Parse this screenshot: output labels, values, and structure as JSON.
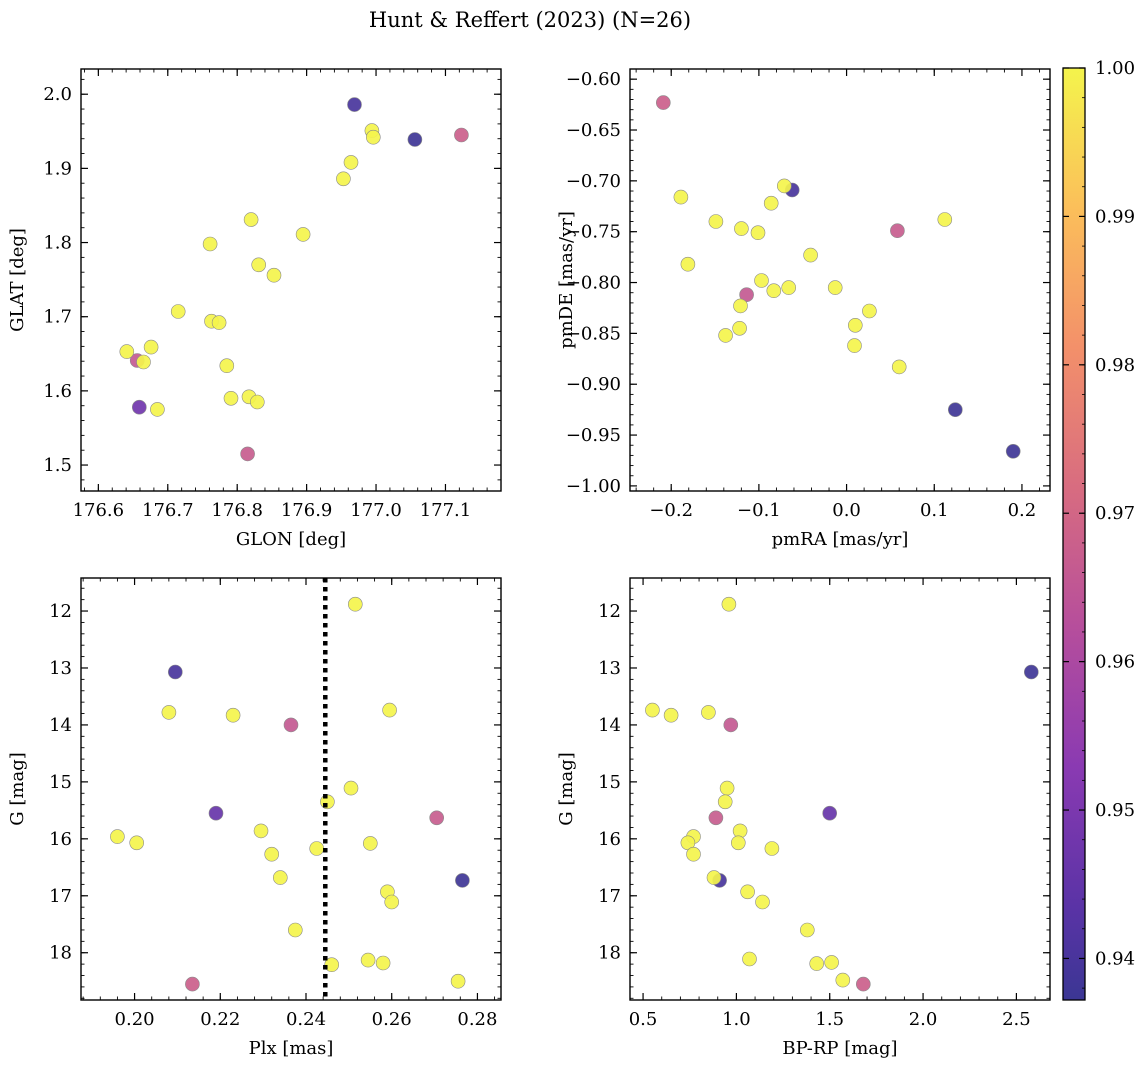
{
  "figure": {
    "title": "Hunt & Reffert (2023) (N=26)"
  },
  "colorbar": {
    "colormap": "plasma",
    "range": [
      0.9372,
      1.0
    ],
    "ticks": [
      0.94,
      0.95,
      0.96,
      0.97,
      0.98,
      0.99,
      1.0
    ],
    "tick_labels": [
      "0.94",
      "0.95",
      "0.96",
      "0.97",
      "0.98",
      "0.99",
      "1.00"
    ]
  },
  "chart_data": [
    {
      "type": "scatter",
      "id": "glon-glat",
      "xlabel": "GLON [deg]",
      "ylabel": "GLAT [deg]",
      "xlim": [
        176.575,
        177.18
      ],
      "ylim": [
        1.465,
        2.034
      ],
      "xticks": [
        176.6,
        176.7,
        176.8,
        176.9,
        177.0,
        177.1
      ],
      "xtick_labels": [
        "176.6",
        "176.7",
        "176.8",
        "176.9",
        "177.0",
        "177.1"
      ],
      "yticks": [
        1.5,
        1.6,
        1.7,
        1.8,
        1.9,
        2.0
      ],
      "ytick_labels": [
        "1.5",
        "1.6",
        "1.7",
        "1.8",
        "1.9",
        "2.0"
      ],
      "y_inverted": false,
      "points": [
        {
          "x": 176.969,
          "y": 1.986,
          "c": 0.94
        },
        {
          "x": 177.056,
          "y": 1.939,
          "c": 0.938
        },
        {
          "x": 176.659,
          "y": 1.578,
          "c": 0.948
        },
        {
          "x": 177.123,
          "y": 1.945,
          "c": 0.968
        },
        {
          "x": 176.656,
          "y": 1.641,
          "c": 0.966
        },
        {
          "x": 176.815,
          "y": 1.515,
          "c": 0.967
        },
        {
          "x": 176.994,
          "y": 1.951,
          "c": 1.0
        },
        {
          "x": 176.996,
          "y": 1.942,
          "c": 1.0
        },
        {
          "x": 176.964,
          "y": 1.908,
          "c": 1.0
        },
        {
          "x": 176.953,
          "y": 1.886,
          "c": 1.0
        },
        {
          "x": 176.82,
          "y": 1.831,
          "c": 1.0
        },
        {
          "x": 176.895,
          "y": 1.811,
          "c": 1.0
        },
        {
          "x": 176.761,
          "y": 1.798,
          "c": 1.0
        },
        {
          "x": 176.831,
          "y": 1.77,
          "c": 1.0
        },
        {
          "x": 176.853,
          "y": 1.756,
          "c": 1.0
        },
        {
          "x": 176.715,
          "y": 1.707,
          "c": 1.0
        },
        {
          "x": 176.763,
          "y": 1.694,
          "c": 1.0
        },
        {
          "x": 176.774,
          "y": 1.692,
          "c": 1.0
        },
        {
          "x": 176.641,
          "y": 1.653,
          "c": 1.0
        },
        {
          "x": 176.676,
          "y": 1.659,
          "c": 1.0
        },
        {
          "x": 176.665,
          "y": 1.639,
          "c": 1.0
        },
        {
          "x": 176.785,
          "y": 1.634,
          "c": 1.0
        },
        {
          "x": 176.685,
          "y": 1.575,
          "c": 1.0
        },
        {
          "x": 176.791,
          "y": 1.59,
          "c": 1.0
        },
        {
          "x": 176.817,
          "y": 1.592,
          "c": 1.0
        },
        {
          "x": 176.829,
          "y": 1.585,
          "c": 1.0
        }
      ]
    },
    {
      "type": "scatter",
      "id": "pmra-pmde",
      "xlabel": "pmRA [mas/yr]",
      "ylabel": "pmDE [mas/yr]",
      "xlim": [
        -0.247,
        0.232
      ],
      "ylim": [
        -1.005,
        -0.59
      ],
      "xticks": [
        -0.2,
        -0.1,
        0.0,
        0.1,
        0.2
      ],
      "xtick_labels": [
        "−0.2",
        "−0.1",
        "0.0",
        "0.1",
        "0.2"
      ],
      "yticks": [
        -1.0,
        -0.95,
        -0.9,
        -0.85,
        -0.8,
        -0.75,
        -0.7,
        -0.65,
        -0.6
      ],
      "ytick_labels": [
        "−1.00",
        "−0.95",
        "−0.90",
        "−0.85",
        "−0.80",
        "−0.75",
        "−0.70",
        "−0.65",
        "−0.60"
      ],
      "y_inverted": false,
      "points": [
        {
          "x": -0.062,
          "y": -0.709,
          "c": 0.94
        },
        {
          "x": 0.124,
          "y": -0.925,
          "c": 0.938
        },
        {
          "x": 0.19,
          "y": -0.966,
          "c": 0.938
        },
        {
          "x": -0.209,
          "y": -0.623,
          "c": 0.968
        },
        {
          "x": 0.058,
          "y": -0.749,
          "c": 0.967
        },
        {
          "x": -0.114,
          "y": -0.812,
          "c": 0.966
        },
        {
          "x": -0.071,
          "y": -0.705,
          "c": 1.0
        },
        {
          "x": -0.189,
          "y": -0.716,
          "c": 1.0
        },
        {
          "x": -0.086,
          "y": -0.722,
          "c": 1.0
        },
        {
          "x": -0.149,
          "y": -0.74,
          "c": 1.0
        },
        {
          "x": 0.112,
          "y": -0.738,
          "c": 1.0
        },
        {
          "x": -0.12,
          "y": -0.747,
          "c": 1.0
        },
        {
          "x": -0.101,
          "y": -0.751,
          "c": 1.0
        },
        {
          "x": -0.041,
          "y": -0.773,
          "c": 1.0
        },
        {
          "x": -0.181,
          "y": -0.782,
          "c": 1.0
        },
        {
          "x": -0.097,
          "y": -0.798,
          "c": 1.0
        },
        {
          "x": -0.083,
          "y": -0.808,
          "c": 1.0
        },
        {
          "x": -0.066,
          "y": -0.805,
          "c": 1.0
        },
        {
          "x": -0.013,
          "y": -0.805,
          "c": 1.0
        },
        {
          "x": -0.121,
          "y": -0.823,
          "c": 1.0
        },
        {
          "x": 0.026,
          "y": -0.828,
          "c": 1.0
        },
        {
          "x": -0.122,
          "y": -0.845,
          "c": 1.0
        },
        {
          "x": 0.01,
          "y": -0.842,
          "c": 1.0
        },
        {
          "x": -0.138,
          "y": -0.852,
          "c": 1.0
        },
        {
          "x": 0.009,
          "y": -0.862,
          "c": 1.0
        },
        {
          "x": 0.06,
          "y": -0.883,
          "c": 1.0
        }
      ]
    },
    {
      "type": "scatter",
      "id": "plx-g",
      "xlabel": "Plx [mas]",
      "ylabel": "G [mag]",
      "xlim": [
        0.1875,
        0.2855
      ],
      "ylim": [
        11.42,
        18.83
      ],
      "xticks": [
        0.2,
        0.22,
        0.24,
        0.26,
        0.28
      ],
      "xtick_labels": [
        "0.20",
        "0.22",
        "0.24",
        "0.26",
        "0.28"
      ],
      "yticks": [
        12,
        13,
        14,
        15,
        16,
        17,
        18
      ],
      "ytick_labels": [
        "12",
        "13",
        "14",
        "15",
        "16",
        "17",
        "18"
      ],
      "y_inverted": true,
      "vline": {
        "x": 0.2445,
        "style": "dotted"
      },
      "points": [
        {
          "x": 0.2095,
          "y": 13.07,
          "c": 0.94
        },
        {
          "x": 0.219,
          "y": 15.55,
          "c": 0.946
        },
        {
          "x": 0.2765,
          "y": 16.73,
          "c": 0.938
        },
        {
          "x": 0.2365,
          "y": 14.0,
          "c": 0.966
        },
        {
          "x": 0.2705,
          "y": 15.63,
          "c": 0.967
        },
        {
          "x": 0.2135,
          "y": 18.55,
          "c": 0.968
        },
        {
          "x": 0.2515,
          "y": 11.88,
          "c": 1.0
        },
        {
          "x": 0.2595,
          "y": 13.74,
          "c": 1.0
        },
        {
          "x": 0.208,
          "y": 13.78,
          "c": 1.0
        },
        {
          "x": 0.223,
          "y": 13.83,
          "c": 1.0
        },
        {
          "x": 0.2505,
          "y": 15.11,
          "c": 1.0
        },
        {
          "x": 0.245,
          "y": 15.35,
          "c": 1.0
        },
        {
          "x": 0.2295,
          "y": 15.86,
          "c": 1.0
        },
        {
          "x": 0.196,
          "y": 15.96,
          "c": 1.0
        },
        {
          "x": 0.2005,
          "y": 16.07,
          "c": 1.0
        },
        {
          "x": 0.255,
          "y": 16.08,
          "c": 1.0
        },
        {
          "x": 0.2425,
          "y": 16.17,
          "c": 1.0
        },
        {
          "x": 0.232,
          "y": 16.27,
          "c": 1.0
        },
        {
          "x": 0.234,
          "y": 16.68,
          "c": 1.0
        },
        {
          "x": 0.259,
          "y": 16.93,
          "c": 1.0
        },
        {
          "x": 0.26,
          "y": 17.11,
          "c": 1.0
        },
        {
          "x": 0.2375,
          "y": 17.6,
          "c": 1.0
        },
        {
          "x": 0.2545,
          "y": 18.13,
          "c": 1.0
        },
        {
          "x": 0.258,
          "y": 18.18,
          "c": 1.0
        },
        {
          "x": 0.246,
          "y": 18.21,
          "c": 1.0
        },
        {
          "x": 0.2755,
          "y": 18.5,
          "c": 1.0
        }
      ]
    },
    {
      "type": "scatter",
      "id": "bprp-g",
      "xlabel": "BP-RP [mag]",
      "ylabel": "G [mag]",
      "xlim": [
        0.43,
        2.68
      ],
      "ylim": [
        11.42,
        18.83
      ],
      "xticks": [
        0.5,
        1.0,
        1.5,
        2.0,
        2.5
      ],
      "xtick_labels": [
        "0.5",
        "1.0",
        "1.5",
        "2.0",
        "2.5"
      ],
      "yticks": [
        12,
        13,
        14,
        15,
        16,
        17,
        18
      ],
      "ytick_labels": [
        "12",
        "13",
        "14",
        "15",
        "16",
        "17",
        "18"
      ],
      "y_inverted": true,
      "points": [
        {
          "x": 2.58,
          "y": 13.07,
          "c": 0.938
        },
        {
          "x": 1.5,
          "y": 15.55,
          "c": 0.946
        },
        {
          "x": 0.91,
          "y": 16.73,
          "c": 0.94
        },
        {
          "x": 0.97,
          "y": 14.0,
          "c": 0.966
        },
        {
          "x": 0.89,
          "y": 15.63,
          "c": 0.967
        },
        {
          "x": 1.68,
          "y": 18.55,
          "c": 0.968
        },
        {
          "x": 0.96,
          "y": 11.88,
          "c": 1.0
        },
        {
          "x": 0.55,
          "y": 13.74,
          "c": 1.0
        },
        {
          "x": 0.65,
          "y": 13.83,
          "c": 1.0
        },
        {
          "x": 0.85,
          "y": 13.78,
          "c": 1.0
        },
        {
          "x": 0.95,
          "y": 15.11,
          "c": 1.0
        },
        {
          "x": 0.94,
          "y": 15.35,
          "c": 1.0
        },
        {
          "x": 1.02,
          "y": 15.86,
          "c": 1.0
        },
        {
          "x": 0.77,
          "y": 15.96,
          "c": 1.0
        },
        {
          "x": 0.74,
          "y": 16.07,
          "c": 1.0
        },
        {
          "x": 1.01,
          "y": 16.07,
          "c": 1.0
        },
        {
          "x": 1.19,
          "y": 16.17,
          "c": 1.0
        },
        {
          "x": 0.77,
          "y": 16.27,
          "c": 1.0
        },
        {
          "x": 0.88,
          "y": 16.68,
          "c": 1.0
        },
        {
          "x": 1.06,
          "y": 16.93,
          "c": 1.0
        },
        {
          "x": 1.14,
          "y": 17.11,
          "c": 1.0
        },
        {
          "x": 1.38,
          "y": 17.6,
          "c": 1.0
        },
        {
          "x": 1.07,
          "y": 18.11,
          "c": 1.0
        },
        {
          "x": 1.43,
          "y": 18.19,
          "c": 1.0
        },
        {
          "x": 1.51,
          "y": 18.17,
          "c": 1.0
        },
        {
          "x": 1.57,
          "y": 18.48,
          "c": 1.0
        }
      ]
    }
  ]
}
